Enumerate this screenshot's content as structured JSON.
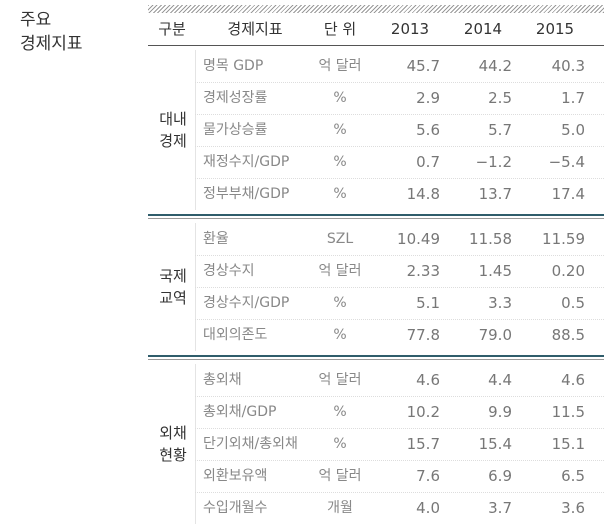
{
  "title": [
    "주요",
    "경제지표"
  ],
  "table": {
    "header": [
      "구분",
      "경제지표",
      "단 위",
      "2013",
      "2014",
      "2015"
    ],
    "groups": [
      {
        "label": [
          "대내",
          "경제"
        ],
        "rows": [
          [
            "명목 GDP",
            "억 달러",
            "45.7",
            "44.2",
            "40.3"
          ],
          [
            "경제성장률",
            "%",
            "2.9",
            "2.5",
            "1.7"
          ],
          [
            "물가상승률",
            "%",
            "5.6",
            "5.7",
            "5.0"
          ],
          [
            "재정수지/GDP",
            "%",
            "0.7",
            "−1.2",
            "−5.4"
          ],
          [
            "정부부채/GDP",
            "%",
            "14.8",
            "13.7",
            "17.4"
          ]
        ]
      },
      {
        "label": [
          "국제",
          "교역"
        ],
        "rows": [
          [
            "환율",
            "SZL",
            "10.49",
            "11.58",
            "11.59"
          ],
          [
            "경상수지",
            "억 달러",
            "2.33",
            "1.45",
            "0.20"
          ],
          [
            "경상수지/GDP",
            "%",
            "5.1",
            "3.3",
            "0.5"
          ],
          [
            "대외의존도",
            "%",
            "77.8",
            "79.0",
            "88.5"
          ]
        ]
      },
      {
        "label": [
          "외채",
          "현황"
        ],
        "rows": [
          [
            "총외채",
            "억 달러",
            "4.6",
            "4.4",
            "4.6"
          ],
          [
            "총외채/GDP",
            "%",
            "10.2",
            "9.9",
            "11.5"
          ],
          [
            "단기외채/총외채",
            "%",
            "15.7",
            "15.4",
            "15.1"
          ],
          [
            "외환보유액",
            "억 달러",
            "7.6",
            "6.9",
            "6.5"
          ],
          [
            "수입개월수",
            "개월",
            "4.0",
            "3.7",
            "3.6"
          ]
        ]
      }
    ]
  }
}
